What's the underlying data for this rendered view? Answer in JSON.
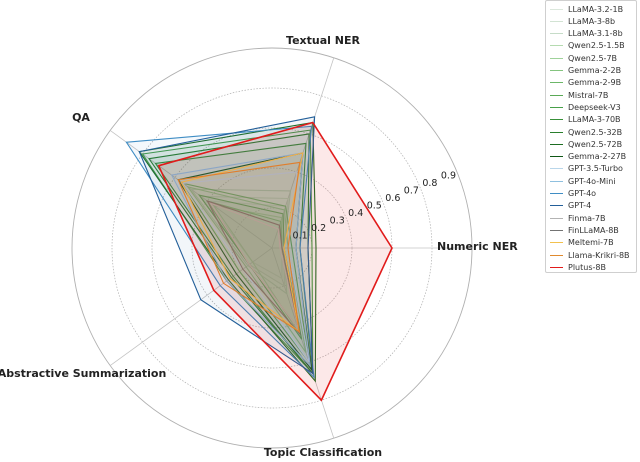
{
  "chart_data": {
    "type": "radar",
    "axes": [
      "Numeric NER",
      "Textual NER",
      "QA",
      "Abstractive Summarization",
      "Topic Classification"
    ],
    "rlim": [
      0,
      1
    ],
    "radial_ticks": [
      0.1,
      0.2,
      0.3,
      0.4,
      0.5,
      0.6,
      0.7,
      0.8,
      0.9
    ],
    "grid": true,
    "legend_position": "top-right",
    "series": [
      {
        "name": "LLaMA-3.2-1B",
        "color": "#dbe7dc",
        "values": [
          0.05,
          0.22,
          0.4,
          0.12,
          0.16
        ]
      },
      {
        "name": "LLaMA-3-8b",
        "color": "#d2e3d3",
        "values": [
          0.06,
          0.26,
          0.44,
          0.14,
          0.2
        ]
      },
      {
        "name": "LLaMA-3.1-8b",
        "color": "#c6dcc8",
        "values": [
          0.06,
          0.3,
          0.5,
          0.15,
          0.24
        ]
      },
      {
        "name": "Qwen2.5-1.5B",
        "color": "#b5dbb0",
        "values": [
          0.05,
          0.16,
          0.36,
          0.12,
          0.46
        ]
      },
      {
        "name": "Qwen2.5-7B",
        "color": "#9fd29a",
        "values": [
          0.08,
          0.2,
          0.52,
          0.16,
          0.55
        ]
      },
      {
        "name": "Gemma-2-2B",
        "color": "#84c47f",
        "values": [
          0.05,
          0.14,
          0.4,
          0.14,
          0.42
        ]
      },
      {
        "name": "Gemma-2-9B",
        "color": "#6cb768",
        "values": [
          0.1,
          0.22,
          0.55,
          0.2,
          0.6
        ]
      },
      {
        "name": "Mistral-7B",
        "color": "#5aa956",
        "values": [
          0.06,
          0.18,
          0.45,
          0.14,
          0.48
        ]
      },
      {
        "name": "Deepseek-V3",
        "color": "#47a049",
        "values": [
          0.2,
          0.62,
          0.8,
          0.28,
          0.66
        ]
      },
      {
        "name": "LLaMA-3-70B",
        "color": "#389039",
        "values": [
          0.14,
          0.55,
          0.72,
          0.24,
          0.66
        ]
      },
      {
        "name": "Qwen2.5-32B",
        "color": "#2a7f2d",
        "values": [
          0.18,
          0.6,
          0.76,
          0.25,
          0.66
        ]
      },
      {
        "name": "Qwen2.5-72B",
        "color": "#1d6d22",
        "values": [
          0.22,
          0.66,
          0.82,
          0.27,
          0.7
        ]
      },
      {
        "name": "Gemma-2-27B",
        "color": "#0f5716",
        "values": [
          0.12,
          0.5,
          0.58,
          0.22,
          0.64
        ]
      },
      {
        "name": "GPT-3.5-Turbo",
        "color": "#b9d6ea",
        "values": [
          0.08,
          0.4,
          0.55,
          0.18,
          0.6
        ]
      },
      {
        "name": "GPT-4o-Mini",
        "color": "#8fc0df",
        "values": [
          0.12,
          0.5,
          0.62,
          0.28,
          0.62
        ]
      },
      {
        "name": "GPT-4o",
        "color": "#3f8dc4",
        "values": [
          0.14,
          0.64,
          0.9,
          0.32,
          0.68
        ]
      },
      {
        "name": "GPT-4",
        "color": "#235f99",
        "values": [
          0.18,
          0.69,
          0.82,
          0.44,
          0.66
        ]
      },
      {
        "name": "Finma-7B",
        "color": "#b3b3b3",
        "values": [
          0.04,
          0.1,
          0.38,
          0.14,
          0.42
        ]
      },
      {
        "name": "FinLLaMA-8B",
        "color": "#737373",
        "values": [
          0.05,
          0.12,
          0.4,
          0.18,
          0.45
        ]
      },
      {
        "name": "Meltemi-7B",
        "color": "#f2c14e",
        "values": [
          0.06,
          0.5,
          0.56,
          0.26,
          0.44
        ]
      },
      {
        "name": "Llama-Krikri-8B",
        "color": "#e08a2e",
        "values": [
          0.08,
          0.45,
          0.58,
          0.3,
          0.44
        ]
      },
      {
        "name": "Plutus-8B",
        "color": "#e11b1b",
        "values": [
          0.6,
          0.66,
          0.7,
          0.36,
          0.8
        ]
      }
    ]
  }
}
